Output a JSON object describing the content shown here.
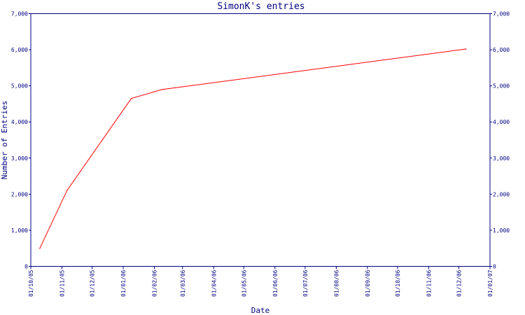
{
  "chart_data": {
    "type": "line",
    "title": "SimonK's entries",
    "xlabel": "Date",
    "ylabel": "Number of Entries",
    "x_ticks": [
      "01/10/05",
      "01/11/05",
      "01/12/05",
      "01/01/06",
      "01/02/06",
      "01/03/06",
      "01/04/06",
      "01/05/06",
      "01/06/06",
      "01/07/06",
      "01/08/06",
      "01/09/06",
      "01/10/06",
      "01/11/06",
      "01/12/06",
      "01/01/07"
    ],
    "y_ticks": [
      "0",
      "1,000",
      "2,000",
      "3,000",
      "4,000",
      "5,000",
      "6,000",
      "7,000"
    ],
    "ylim": [
      0,
      7000
    ],
    "xlim": [
      "2005-10-01",
      "2007-01-01"
    ],
    "grid": false,
    "series": [
      {
        "color": "#ff0000",
        "x": [
          "2005-10-10",
          "2005-11-06",
          "2006-01-09",
          "2006-02-09",
          "2006-12-08"
        ],
        "y": [
          500,
          2100,
          4650,
          4900,
          6020
        ]
      }
    ],
    "colors": {
      "axis": "#000080",
      "text": "#000080",
      "line": "#ff0000"
    }
  }
}
